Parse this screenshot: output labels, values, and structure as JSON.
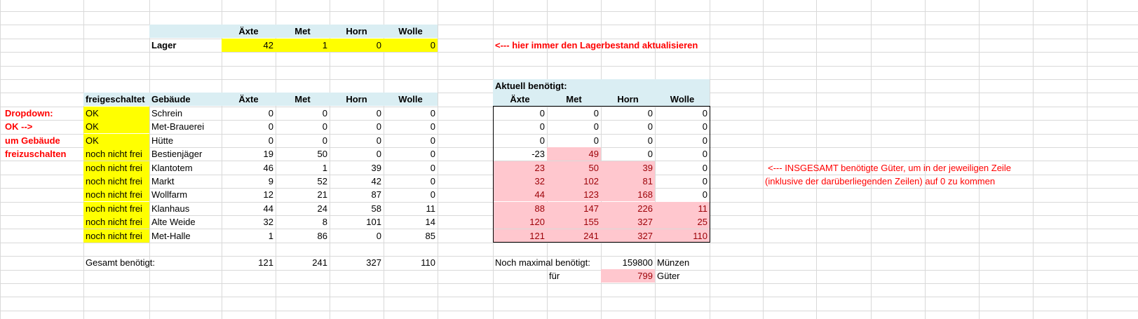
{
  "stock": {
    "headers": [
      "Äxte",
      "Met",
      "Horn",
      "Wolle"
    ],
    "label": "Lager",
    "values": [
      "42",
      "1",
      "0",
      "0"
    ],
    "note": "<--- hier immer den Lagerbestand aktualisieren"
  },
  "dropdown_note": [
    "Dropdown:",
    "OK -->",
    "um Gebäude",
    "freizuschalten"
  ],
  "buildings": {
    "col_unlocked": "freigeschaltet",
    "col_building": "Gebäude",
    "headers": [
      "Äxte",
      "Met",
      "Horn",
      "Wolle"
    ],
    "rows": [
      {
        "status": "OK",
        "name": "Schrein",
        "values": [
          "0",
          "0",
          "0",
          "0"
        ]
      },
      {
        "status": "OK",
        "name": "Met-Brauerei",
        "values": [
          "0",
          "0",
          "0",
          "0"
        ]
      },
      {
        "status": "OK",
        "name": "Hütte",
        "values": [
          "0",
          "0",
          "0",
          "0"
        ]
      },
      {
        "status": "noch nicht frei",
        "name": "Bestienjäger",
        "values": [
          "19",
          "50",
          "0",
          "0"
        ]
      },
      {
        "status": "noch nicht frei",
        "name": "Klantotem",
        "values": [
          "46",
          "1",
          "39",
          "0"
        ]
      },
      {
        "status": "noch nicht frei",
        "name": "Markt",
        "values": [
          "9",
          "52",
          "42",
          "0"
        ]
      },
      {
        "status": "noch nicht frei",
        "name": "Wollfarm",
        "values": [
          "12",
          "21",
          "87",
          "0"
        ]
      },
      {
        "status": "noch nicht frei",
        "name": "Klanhaus",
        "values": [
          "44",
          "24",
          "58",
          "11"
        ]
      },
      {
        "status": "noch nicht frei",
        "name": "Alte Weide",
        "values": [
          "32",
          "8",
          "101",
          "14"
        ]
      },
      {
        "status": "noch nicht frei",
        "name": "Met-Halle",
        "values": [
          "1",
          "86",
          "0",
          "85"
        ]
      }
    ],
    "total_label": "Gesamt benötigt:",
    "totals": [
      "121",
      "241",
      "327",
      "110"
    ]
  },
  "needed": {
    "title": "Aktuell benötigt:",
    "headers": [
      "Äxte",
      "Met",
      "Horn",
      "Wolle"
    ],
    "rows": [
      {
        "values": [
          "0",
          "0",
          "0",
          "0"
        ],
        "highlight": [
          false,
          false,
          false,
          false
        ]
      },
      {
        "values": [
          "0",
          "0",
          "0",
          "0"
        ],
        "highlight": [
          false,
          false,
          false,
          false
        ]
      },
      {
        "values": [
          "0",
          "0",
          "0",
          "0"
        ],
        "highlight": [
          false,
          false,
          false,
          false
        ]
      },
      {
        "values": [
          "-23",
          "49",
          "0",
          "0"
        ],
        "highlight": [
          false,
          true,
          false,
          false
        ]
      },
      {
        "values": [
          "23",
          "50",
          "39",
          "0"
        ],
        "highlight": [
          true,
          true,
          true,
          false
        ]
      },
      {
        "values": [
          "32",
          "102",
          "81",
          "0"
        ],
        "highlight": [
          true,
          true,
          true,
          false
        ]
      },
      {
        "values": [
          "44",
          "123",
          "168",
          "0"
        ],
        "highlight": [
          true,
          true,
          true,
          false
        ]
      },
      {
        "values": [
          "88",
          "147",
          "226",
          "11"
        ],
        "highlight": [
          true,
          true,
          true,
          true
        ]
      },
      {
        "values": [
          "120",
          "155",
          "327",
          "25"
        ],
        "highlight": [
          true,
          true,
          true,
          true
        ]
      },
      {
        "values": [
          "121",
          "241",
          "327",
          "110"
        ],
        "highlight": [
          true,
          true,
          true,
          true
        ]
      }
    ],
    "note_lines": [
      "<--- INSGESAMT benötigte Güter, um in der jeweiligen Zeile",
      "(inklusive der darüberliegenden Zeilen)  auf 0 zu kommen"
    ],
    "max_label": "Noch maximal benötigt:",
    "max_value": "159800",
    "max_unit": "Münzen",
    "for_label": "für",
    "goods_value": "799",
    "goods_unit": "Güter"
  },
  "colors": {
    "header_fill": "#daeef3",
    "unlocked_fill": "#ffff00",
    "highlight_fill": "#ffc7ce",
    "highlight_text": "#9c0006",
    "note_text": "#ff0000"
  }
}
